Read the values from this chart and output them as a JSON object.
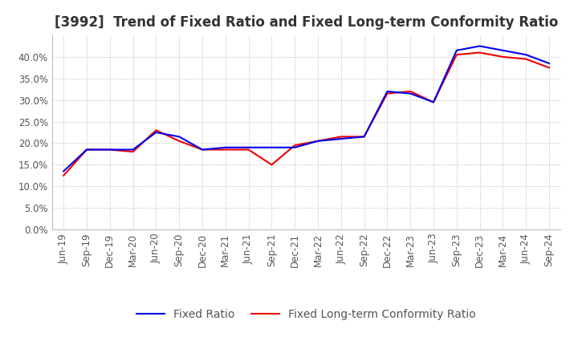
{
  "title": "[3992]  Trend of Fixed Ratio and Fixed Long-term Conformity Ratio",
  "x_labels": [
    "Jun-19",
    "Sep-19",
    "Dec-19",
    "Mar-20",
    "Jun-20",
    "Sep-20",
    "Dec-20",
    "Mar-21",
    "Jun-21",
    "Sep-21",
    "Dec-21",
    "Mar-22",
    "Jun-22",
    "Sep-22",
    "Dec-22",
    "Mar-23",
    "Jun-23",
    "Sep-23",
    "Dec-23",
    "Mar-24",
    "Jun-24",
    "Sep-24"
  ],
  "fixed_ratio": [
    0.135,
    0.185,
    0.185,
    0.185,
    0.225,
    0.215,
    0.185,
    0.19,
    0.19,
    0.19,
    0.19,
    0.205,
    0.21,
    0.215,
    0.32,
    0.315,
    0.295,
    0.415,
    0.425,
    0.415,
    0.405,
    0.385
  ],
  "fixed_lt_ratio": [
    0.125,
    0.185,
    0.185,
    0.18,
    0.23,
    0.205,
    0.185,
    0.185,
    0.185,
    0.15,
    0.195,
    0.205,
    0.215,
    0.215,
    0.315,
    0.32,
    0.295,
    0.405,
    0.41,
    0.4,
    0.395,
    0.375
  ],
  "fixed_ratio_color": "#0000ee",
  "fixed_lt_ratio_color": "#ee0000",
  "ylim": [
    0.0,
    0.45
  ],
  "yticks": [
    0.0,
    0.05,
    0.1,
    0.15,
    0.2,
    0.25,
    0.3,
    0.35,
    0.4
  ],
  "background_color": "#ffffff",
  "plot_bg_color": "#ffffff",
  "grid_color": "#aaaaaa",
  "title_fontsize": 12,
  "legend_fontsize": 10,
  "tick_fontsize": 8.5
}
